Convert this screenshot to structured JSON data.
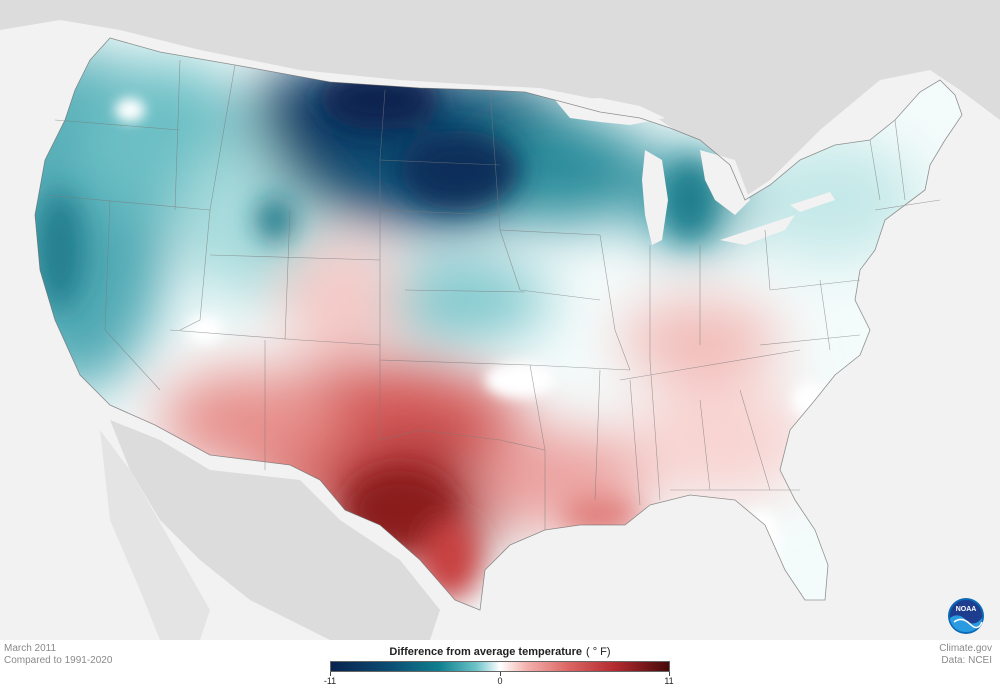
{
  "map": {
    "date": "March 2011",
    "baseline": "Compared to 1991-2020",
    "source_site": "Climate.gov",
    "source_data": "Data: NCEI",
    "logo_text": "NOAA"
  },
  "legend": {
    "title": "Difference from average temperature",
    "unit": "( ° F)",
    "min_label": "-11",
    "mid_label": "0",
    "max_label": "11",
    "min": -11,
    "max": 11
  },
  "colors": {
    "strong_cold": "#08224f",
    "cold": "#0f7f8e",
    "cool": "#8fd1d3",
    "neutral": "#ffffff",
    "warm": "#f1a6a2",
    "hot": "#c8403f",
    "strong_hot": "#480a0a",
    "land_outside": "#dcdcdc",
    "water": "#f2f2f2"
  }
}
